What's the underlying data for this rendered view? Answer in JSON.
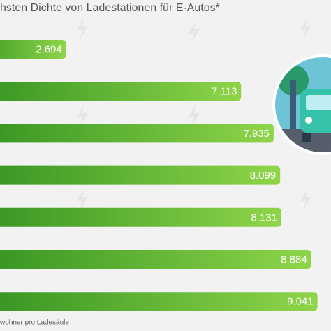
{
  "chart_data": {
    "type": "bar",
    "orientation": "horizontal",
    "title": "hsten Dichte von Ladestationen für E-Autos*",
    "values": [
      2694,
      7113,
      7935,
      8099,
      8131,
      8884,
      9041
    ],
    "value_labels": [
      "2.694",
      "7.113",
      "7.935",
      "8.099",
      "8.131",
      "8.884",
      "9.041"
    ],
    "color": "#5cb82c",
    "xlim": [
      0,
      10000
    ],
    "footnote": "wohner pro Ladesäule"
  }
}
